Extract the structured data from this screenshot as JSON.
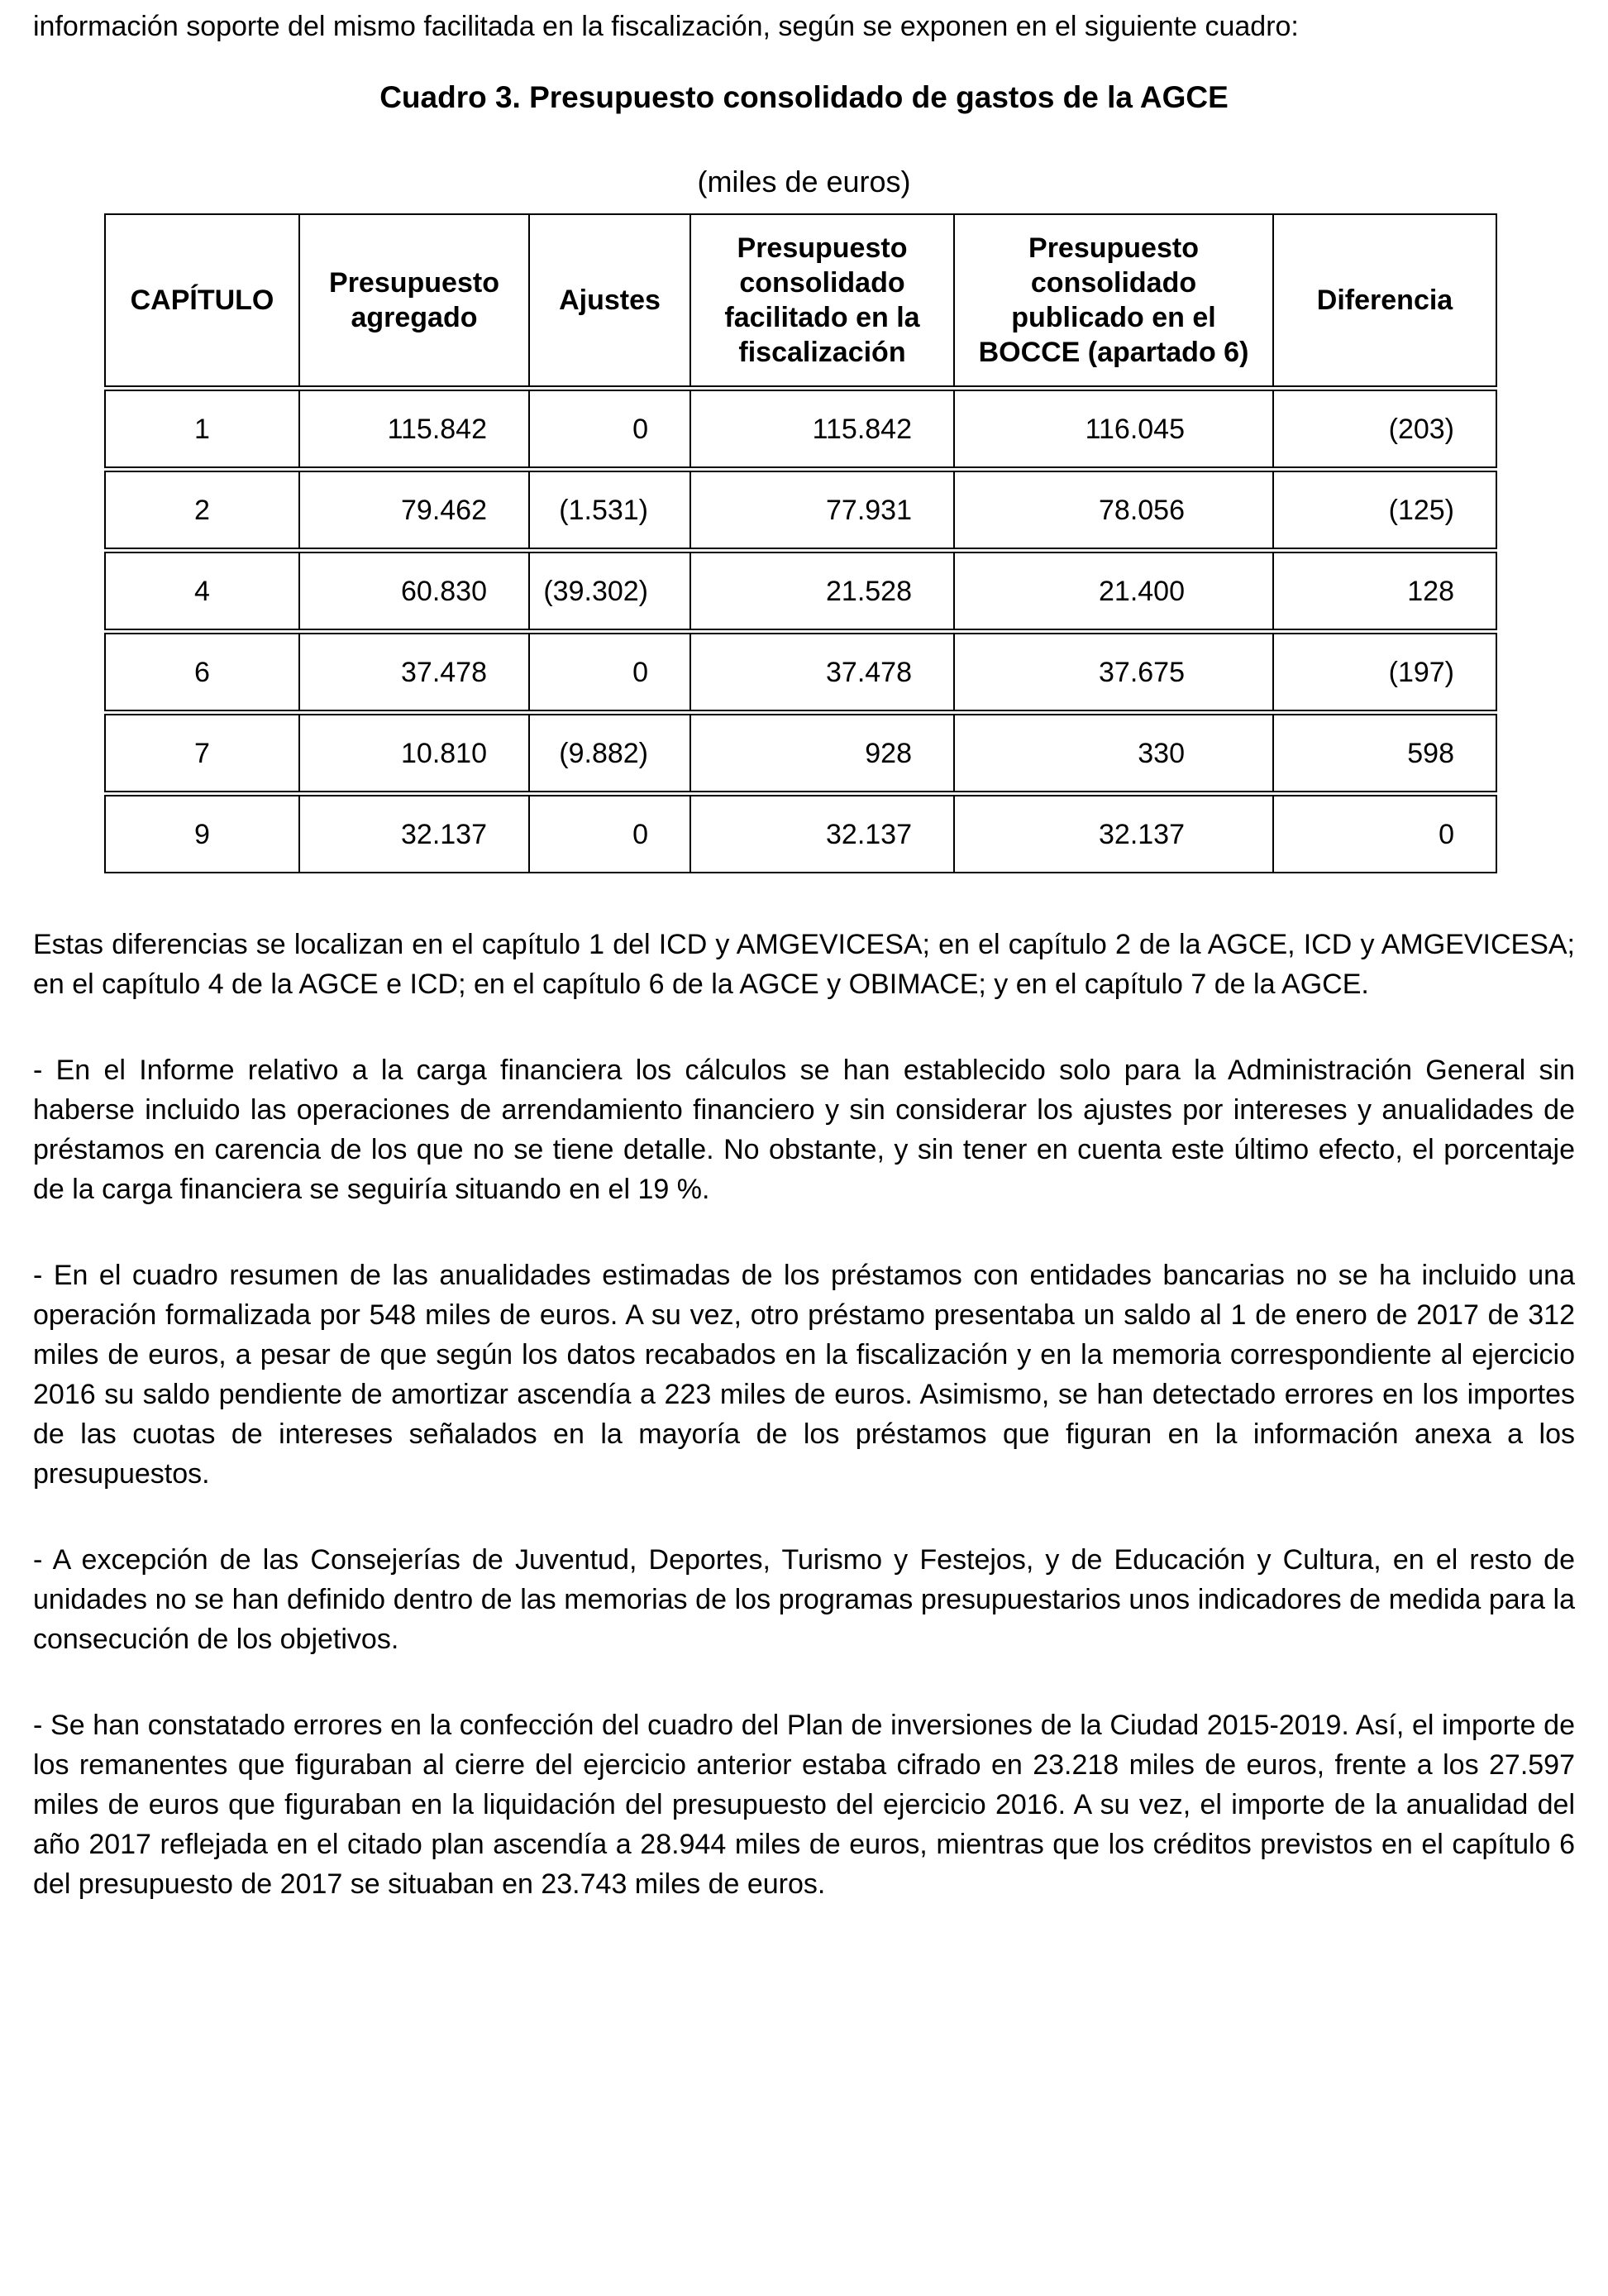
{
  "intro": "información soporte del mismo facilitada en la fiscalización, según se exponen en el siguiente cuadro:",
  "table_title": "Cuadro 3. Presupuesto consolidado de gastos de la AGCE",
  "table_subtitle": "(miles de euros)",
  "table": {
    "headers": [
      "CAPÍTULO",
      "Presupuesto agregado",
      "Ajustes",
      "Presupuesto consolidado facilitado en la fiscalización",
      "Presupuesto consolidado publicado en el BOCCE (apartado 6)",
      "Diferencia"
    ],
    "rows": [
      [
        "1",
        "115.842",
        "0",
        "115.842",
        "116.045",
        "(203)"
      ],
      [
        "2",
        "79.462",
        "(1.531)",
        "77.931",
        "78.056",
        "(125)"
      ],
      [
        "4",
        "60.830",
        "(39.302)",
        "21.528",
        "21.400",
        "128"
      ],
      [
        "6",
        "37.478",
        "0",
        "37.478",
        "37.675",
        "(197)"
      ],
      [
        "7",
        "10.810",
        "(9.882)",
        "928",
        "330",
        "598"
      ],
      [
        "9",
        "32.137",
        "0",
        "32.137",
        "32.137",
        "0"
      ]
    ]
  },
  "paragraphs": [
    "Estas diferencias se localizan en el capítulo 1 del ICD y AMGEVICESA; en el capítulo 2 de la AGCE, ICD y AMGEVICESA; en el capítulo 4 de la AGCE e ICD; en el capítulo 6 de la AGCE y OBIMACE; y en el capítulo 7 de la AGCE.",
    "- En el Informe relativo a la carga financiera los cálculos se han establecido solo para la Administración General sin haberse incluido las operaciones de arrendamiento financiero y sin considerar los ajustes por intereses y anualidades de préstamos en carencia de los que no se tiene detalle. No obstante, y sin tener en cuenta este último efecto, el porcentaje de la carga financiera se seguiría situando en el 19 %.",
    "- En el cuadro resumen de las anualidades estimadas de los préstamos con entidades bancarias no se ha incluido una operación formalizada por 548 miles de euros. A su vez, otro préstamo presentaba un saldo al 1 de enero de 2017 de 312 miles de euros, a pesar de que según los datos recabados en la fiscalización y en la memoria correspondiente al ejercicio 2016 su saldo pendiente de amortizar ascendía a 223 miles de euros. Asimismo, se han detectado errores en los importes de las cuotas de intereses señalados en la mayoría de los préstamos que figuran en la información anexa a los presupuestos.",
    "- A excepción de las Consejerías de Juventud, Deportes, Turismo y Festejos, y de Educación y Cultura, en el resto de unidades no se han definido dentro de las memorias de los programas presupuestarios unos indicadores de medida para la consecución de los objetivos.",
    "- Se han constatado errores en la confección del cuadro del Plan de inversiones de la Ciudad 2015-2019. Así, el importe de los remanentes que figuraban al cierre del ejercicio anterior estaba cifrado en 23.218 miles de euros, frente a los 27.597 miles de euros que figuraban en la liquidación del presupuesto del ejercicio 2016. A su vez, el importe de la anualidad del año 2017 reflejada en el citado plan ascendía a 28.944 miles de euros, mientras que los créditos previstos en el capítulo 6 del presupuesto de 2017 se situaban en 23.743 miles de euros."
  ]
}
